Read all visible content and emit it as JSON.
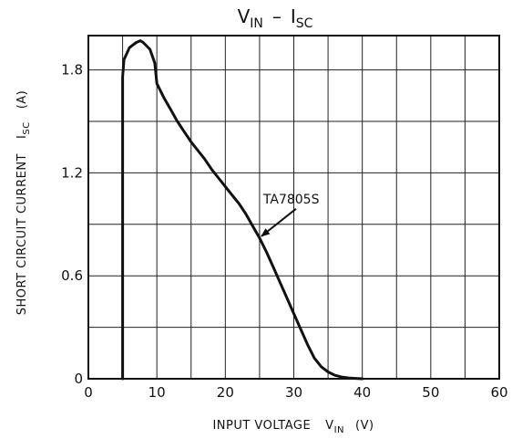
{
  "chart_data": {
    "type": "line",
    "title": {
      "main": "V",
      "main_sub": "IN",
      "sep": "–",
      "second": "I",
      "second_sub": "SC"
    },
    "xlabel": {
      "text": "INPUT VOLTAGE",
      "var": "V",
      "var_sub": "IN",
      "unit": "(V)"
    },
    "ylabel": {
      "text": "SHORT CIRCUIT CURRENT",
      "var": "I",
      "var_sub": "SC",
      "unit": "(A)"
    },
    "xlim": [
      0,
      60
    ],
    "ylim": [
      0,
      2.0
    ],
    "x_ticks": [
      0,
      10,
      20,
      30,
      40,
      50,
      60
    ],
    "y_ticks": [
      0,
      0.6,
      1.2,
      1.8
    ],
    "x_tick_labels": [
      "0",
      "10",
      "20",
      "30",
      "40",
      "50",
      "60"
    ],
    "y_tick_labels": [
      "0",
      "0.6",
      "1.2",
      "1.8"
    ],
    "grid": true,
    "series": [
      {
        "name": "TA7805S",
        "x": [
          5,
          5,
          5.2,
          6,
          7,
          7.6,
          8,
          9,
          9.7,
          10,
          11,
          12,
          13,
          14,
          15,
          16,
          17,
          18,
          19,
          20,
          21,
          22,
          23,
          24,
          25,
          26,
          27,
          28,
          29,
          30,
          31,
          32,
          33,
          34,
          35,
          36,
          37,
          38,
          39,
          40
        ],
        "y": [
          0,
          1.76,
          1.86,
          1.93,
          1.96,
          1.97,
          1.96,
          1.92,
          1.84,
          1.72,
          1.64,
          1.57,
          1.5,
          1.44,
          1.38,
          1.33,
          1.28,
          1.22,
          1.17,
          1.12,
          1.07,
          1.02,
          0.96,
          0.89,
          0.82,
          0.74,
          0.65,
          0.56,
          0.47,
          0.38,
          0.29,
          0.2,
          0.12,
          0.07,
          0.04,
          0.02,
          0.01,
          0.005,
          0.002,
          0
        ]
      }
    ],
    "annotations": [
      {
        "text": "TA7805S",
        "point_x": 25,
        "point_y": 0.82
      }
    ]
  }
}
